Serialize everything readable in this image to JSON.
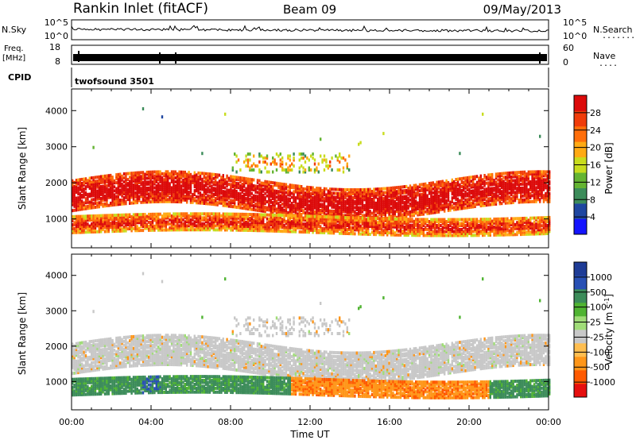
{
  "header": {
    "station": "Rankin Inlet (fitACF)",
    "beam": "Beam 09",
    "date": "09/May/2013"
  },
  "meta_panels": {
    "nsky_label": "N.Sky",
    "nsearch_label": "N.Search",
    "nsearch_dots": "........",
    "noise_ticks": [
      "10^5",
      "10^0"
    ],
    "freq_label_top": "Freq.",
    "freq_label_unit": "[MHz]",
    "freq_ticks": [
      "18",
      "8"
    ],
    "nave_label": "Nave",
    "nave_dots": "....",
    "nave_ticks": [
      "60",
      "0"
    ],
    "cpid_label": "CPID",
    "cpid_value": "twofsound 3501"
  },
  "colors": {
    "power_scale": [
      "#1414ff",
      "#1e46a0",
      "#3c8c5a",
      "#64b432",
      "#c8dc1e",
      "#ffaa14",
      "#ff6e0a",
      "#f03c0a",
      "#dc0a0a"
    ],
    "velocity_scale": [
      "#e60f0f",
      "#ff5a00",
      "#ff9619",
      "#ffbe50",
      "#c8c8c8",
      "#a0dc78",
      "#50b432",
      "#3c8c5a",
      "#2850b4",
      "#1e3c96"
    ]
  },
  "chart_data": [
    {
      "type": "heatmap",
      "name": "power-panel",
      "title": "",
      "xlabel": "",
      "ylabel": "Slant Range [km]",
      "ylim": [
        200,
        4600
      ],
      "yticks": [
        1000,
        2000,
        3000,
        4000
      ],
      "xlim_hours": [
        0,
        24
      ],
      "colorbar": {
        "label": "Power [dB]",
        "range": [
          0,
          32
        ],
        "ticks": [
          "4",
          "8",
          "12",
          "16",
          "20",
          "24",
          "28"
        ]
      }
    },
    {
      "type": "heatmap",
      "name": "velocity-panel",
      "title": "",
      "xlabel": "Time UT",
      "ylabel": "Slant Range [km]",
      "ylim": [
        200,
        4600
      ],
      "yticks": [
        1000,
        2000,
        3000,
        4000
      ],
      "xlim_hours": [
        0,
        24
      ],
      "xticks": [
        "00:00",
        "04:00",
        "08:00",
        "12:00",
        "16:00",
        "20:00",
        "00:00"
      ],
      "colorbar": {
        "label": "Velocity [m s",
        "label_exponent": "-1",
        "label_close": "]",
        "ticks": [
          "1000",
          "500",
          "100",
          "25",
          "-25",
          "-100",
          "-500",
          "-1000"
        ]
      }
    }
  ]
}
